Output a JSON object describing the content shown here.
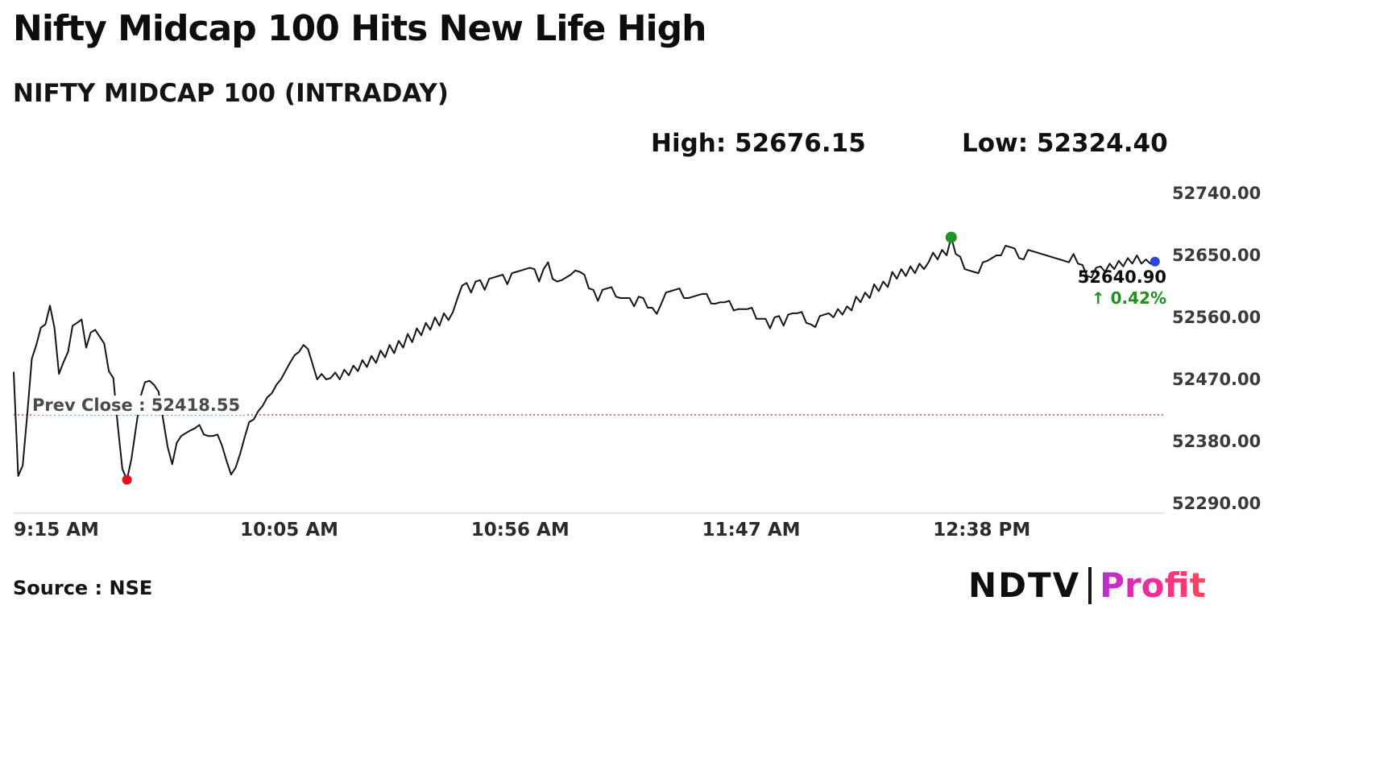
{
  "page": {
    "title": "Nifty Midcap 100 Hits New Life High",
    "subtitle": "NIFTY MIDCAP 100 (INTRADAY)",
    "high_text": "High: 52676.15",
    "low_text": "Low: 52324.40",
    "source": "Source : NSE",
    "brand": {
      "name": "NDTV",
      "word": "Profit"
    }
  },
  "chart_data": {
    "type": "line",
    "title": "Nifty Midcap 100 Hits New Life High",
    "subtitle": "NIFTY MIDCAP 100 (INTRADAY)",
    "series_name": "NIFTY MIDCAP 100 intraday price",
    "x_unit": "minutes since 9:15 AM",
    "start_min": 0,
    "step_min": 1,
    "xlim": [
      0,
      254
    ],
    "ylim": [
      52290,
      52740
    ],
    "high": 52676.15,
    "low": 52324.4,
    "last_price": 52640.9,
    "prev_close": 52418.55,
    "prev_close_label": "Prev Close : 52418.55",
    "last_price_label": "52640.90",
    "change_label": "↑ 0.42%",
    "line_color": "#141414",
    "prev_close_color": "#d14b4b",
    "grid": false,
    "legend": false,
    "yticks": [
      {
        "label": "52740.00",
        "value": 52740
      },
      {
        "label": "52650.00",
        "value": 52650
      },
      {
        "label": "52560.00",
        "value": 52560
      },
      {
        "label": "52470.00",
        "value": 52470
      },
      {
        "label": "52380.00",
        "value": 52380
      },
      {
        "label": "52290.00",
        "value": 52290
      }
    ],
    "xticks": [
      {
        "label": "9:15 AM",
        "min": 0
      },
      {
        "label": "10:05 AM",
        "min": 50
      },
      {
        "label": "10:56 AM",
        "min": 101
      },
      {
        "label": "11:47 AM",
        "min": 152
      },
      {
        "label": "12:38 PM",
        "min": 203
      }
    ],
    "markers": [
      {
        "name": "low-marker",
        "min": 25,
        "price": 52324.4,
        "color": "#e60f1e",
        "r": 6
      },
      {
        "name": "high-marker",
        "min": 207,
        "price": 52676.15,
        "color": "#1e9426",
        "r": 7
      },
      {
        "name": "last-marker",
        "min": 252,
        "price": 52640.9,
        "color": "#2a46d4",
        "r": 6
      }
    ],
    "prices": [
      52480,
      52330,
      52345,
      52420,
      52500,
      52520,
      52545,
      52550,
      52577,
      52545,
      52478,
      52495,
      52510,
      52548,
      52552,
      52557,
      52516,
      52538,
      52542,
      52532,
      52522,
      52482,
      52472,
      52402,
      52340,
      52324.4,
      52355,
      52400,
      52445,
      52466,
      52468,
      52462,
      52452,
      52412,
      52372,
      52347,
      52378,
      52388,
      52392,
      52396,
      52399,
      52404,
      52390,
      52388,
      52388,
      52390,
      52374,
      52352,
      52332,
      52342,
      52362,
      52386,
      52408,
      52412,
      52424,
      52432,
      52444,
      52450,
      52462,
      52470,
      52482,
      52494,
      52505,
      52510,
      52520,
      52514,
      52492,
      52470,
      52478,
      52470,
      52472,
      52480,
      52470,
      52484,
      52476,
      52490,
      52482,
      52498,
      52488,
      52504,
      52494,
      52512,
      52502,
      52520,
      52508,
      52526,
      52516,
      52536,
      52524,
      52544,
      52534,
      52552,
      52542,
      52560,
      52548,
      52566,
      52556,
      52568,
      52588,
      52606,
      52610,
      52596,
      52612,
      52614,
      52600,
      52616,
      52618,
      52620,
      52622,
      52608,
      52624,
      52626,
      52628,
      52630,
      52632,
      52630,
      52612,
      52630,
      52640,
      52616,
      52612,
      52614,
      52618,
      52622,
      52628,
      52626,
      52622,
      52602,
      52600,
      52584,
      52600,
      52602,
      52604,
      52590,
      52588,
      52588,
      52588,
      52576,
      52590,
      52588,
      52574,
      52574,
      52565,
      52580,
      52596,
      52598,
      52600,
      52602,
      52588,
      52588,
      52590,
      52592,
      52594,
      52594,
      52580,
      52580,
      52582,
      52582,
      52584,
      52570,
      52572,
      52572,
      52572,
      52574,
      52558,
      52558,
      52558,
      52544,
      52560,
      52562,
      52548,
      52564,
      52566,
      52566,
      52568,
      52552,
      52550,
      52546,
      52562,
      52564,
      52566,
      52560,
      52572,
      52564,
      52576,
      52570,
      52590,
      52582,
      52596,
      52588,
      52608,
      52598,
      52612,
      52604,
      52626,
      52616,
      52630,
      52620,
      52634,
      52624,
      52638,
      52630,
      52640,
      52654,
      52644,
      52658,
      52650,
      52676.15,
      52652,
      52648,
      52630,
      52628,
      52626,
      52624,
      52640,
      52642,
      52646,
      52650,
      52650,
      52664,
      52662,
      52660,
      52646,
      52644,
      52658,
      52656,
      52654,
      52652,
      52650,
      52648,
      52646,
      52644,
      52642,
      52640,
      52652,
      52638,
      52636,
      52620,
      52618,
      52632,
      52634,
      52626,
      52638,
      52630,
      52642,
      52634,
      52646,
      52638,
      52650,
      52638,
      52644,
      52638,
      52640.9
    ]
  }
}
